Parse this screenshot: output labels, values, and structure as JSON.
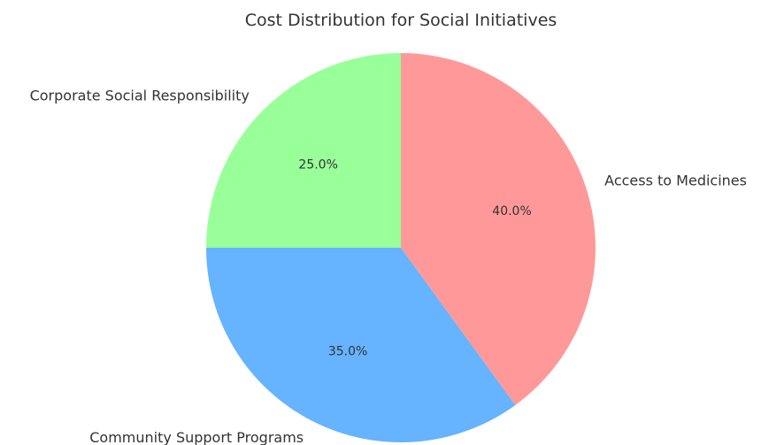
{
  "chart_data": {
    "type": "pie",
    "title": "Cost Distribution for Social Initiatives",
    "start_angle_deg": 90,
    "direction": "clockwise",
    "legend": "none",
    "slices": [
      {
        "label": "Access to Medicines",
        "value": 40,
        "pct_label": "40.0%",
        "color": "#ff9999"
      },
      {
        "label": "Community Support Programs",
        "value": 35,
        "pct_label": "35.0%",
        "color": "#66b3ff"
      },
      {
        "label": "Corporate Social Responsibility",
        "value": 25,
        "pct_label": "25.0%",
        "color": "#99ff99"
      }
    ]
  }
}
